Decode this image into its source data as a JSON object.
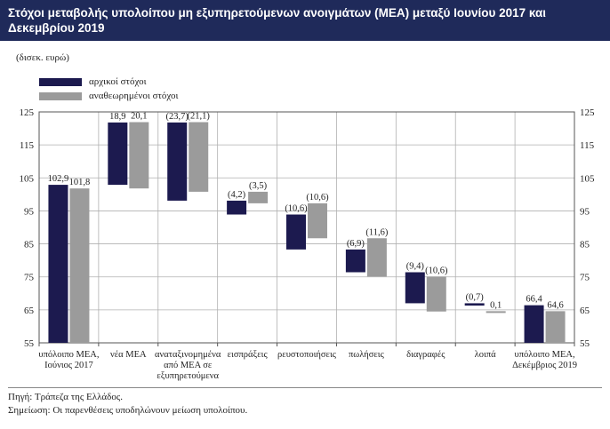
{
  "title": "Στόχοι μεταβολής υπολοίπου μη εξυπηρετούμενων ανοιγμάτων (ΜΕΑ) μεταξύ Ιουνίου 2017 και Δεκεμβρίου 2019",
  "unit": "(δισεκ. ευρώ)",
  "source": "Πηγή: Τράπεζα της Ελλάδος.",
  "note": "Σημείωση: Οι παρενθέσεις υποδηλώνουν μείωση υπολοίπου.",
  "colors": {
    "title_bg": "#1f2a5a",
    "series_a": "#1c1a4f",
    "series_b": "#9b9b9b",
    "grid": "#b0b0b0"
  },
  "chart_data": {
    "type": "bar",
    "subtype": "waterfall",
    "ylim": [
      55,
      125
    ],
    "yticks": [
      "55",
      "65",
      "75",
      "85",
      "95",
      "105",
      "115",
      "125"
    ],
    "grid": true,
    "legend_position": "top-left",
    "categories": [
      [
        "υπόλοιπο ΜΕΑ,",
        "Ιούνιος 2017"
      ],
      [
        "νέα ΜΕΑ"
      ],
      [
        "αναταξινομημένα",
        "από ΜΕΑ σε",
        "εξυπηρετούμενα"
      ],
      [
        "εισπράξεις"
      ],
      [
        "ρευστοποιήσεις"
      ],
      [
        "πωλήσεις"
      ],
      [
        "διαγραφές"
      ],
      [
        "λοιπά"
      ],
      [
        "υπόλοιπο ΜΕΑ,",
        "Δεκέμβριος 2019"
      ]
    ],
    "series": [
      {
        "name": "αρχικοί στόχοι",
        "bars": [
          {
            "from": 55,
            "to": 102.9,
            "label": "102,9"
          },
          {
            "from": 102.9,
            "to": 121.8,
            "label": "18,9"
          },
          {
            "from": 121.8,
            "to": 98.1,
            "label": "(23,7)"
          },
          {
            "from": 98.1,
            "to": 93.9,
            "label": "(4,2)"
          },
          {
            "from": 93.9,
            "to": 83.3,
            "label": "(10,6)"
          },
          {
            "from": 83.3,
            "to": 76.4,
            "label": "(6,9)"
          },
          {
            "from": 76.4,
            "to": 67.0,
            "label": "(9,4)"
          },
          {
            "from": 67.0,
            "to": 66.3,
            "label": "(0,7)"
          },
          {
            "from": 55,
            "to": 66.4,
            "label": "66,4"
          }
        ]
      },
      {
        "name": "αναθεωρημένοι στόχοι",
        "bars": [
          {
            "from": 55,
            "to": 101.8,
            "label": "101,8"
          },
          {
            "from": 101.8,
            "to": 121.9,
            "label": "20,1"
          },
          {
            "from": 121.9,
            "to": 100.8,
            "label": "(21,1)"
          },
          {
            "from": 100.8,
            "to": 97.3,
            "label": "(3,5)"
          },
          {
            "from": 97.3,
            "to": 86.7,
            "label": "(10,6)"
          },
          {
            "from": 86.7,
            "to": 75.1,
            "label": "(11,6)"
          },
          {
            "from": 75.1,
            "to": 64.5,
            "label": "(10,6)"
          },
          {
            "from": 64.5,
            "to": 64.6,
            "label": "0,1"
          },
          {
            "from": 55,
            "to": 64.6,
            "label": "64,6"
          }
        ]
      }
    ]
  }
}
